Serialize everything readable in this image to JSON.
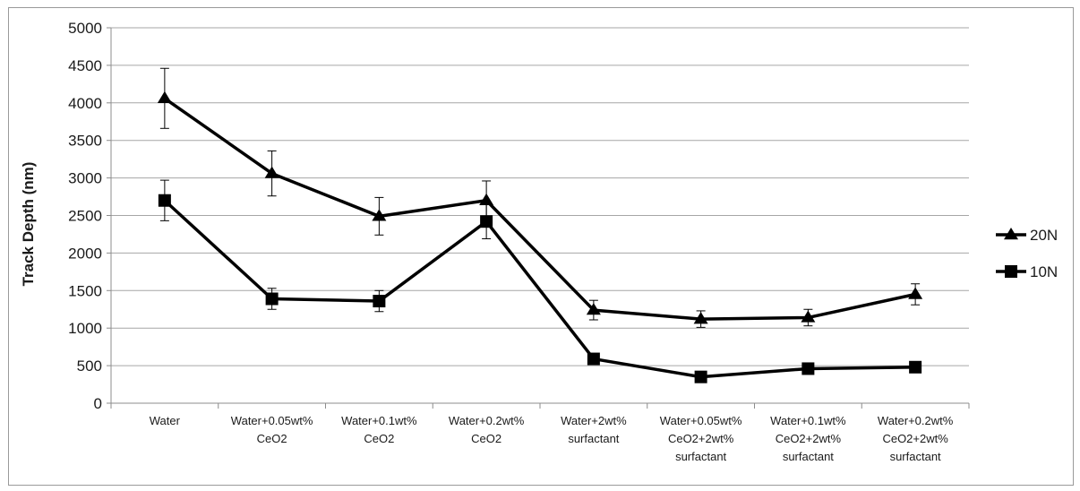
{
  "chart_data": {
    "type": "line",
    "title": "",
    "xlabel": "",
    "ylabel": "Track Depth (nm)",
    "ylim": [
      0,
      5000
    ],
    "ytick_step": 500,
    "yticks": [
      "0",
      "500",
      "1000",
      "1500",
      "2000",
      "2500",
      "3000",
      "3500",
      "4000",
      "4500",
      "5000"
    ],
    "grid": true,
    "legend_position": "right",
    "categories": [
      [
        "Water"
      ],
      [
        "Water+0.05wt%",
        "CeO2"
      ],
      [
        "Water+0.1wt%",
        "CeO2"
      ],
      [
        "Water+0.2wt%",
        "CeO2"
      ],
      [
        "Water+2wt%",
        "surfactant"
      ],
      [
        "Water+0.05wt%",
        "CeO2+2wt%",
        "surfactant"
      ],
      [
        "Water+0.1wt%",
        "CeO2+2wt%",
        "surfactant"
      ],
      [
        "Water+0.2wt%",
        "CeO2+2wt%",
        "surfactant"
      ]
    ],
    "series": [
      {
        "name": "20N",
        "marker": "triangle",
        "color": "#000000",
        "values": [
          4060,
          3060,
          2490,
          2700,
          1240,
          1120,
          1140,
          1450
        ],
        "error": [
          400,
          300,
          250,
          260,
          130,
          110,
          110,
          140
        ]
      },
      {
        "name": "10N",
        "marker": "square",
        "color": "#000000",
        "values": [
          2700,
          1390,
          1360,
          2420,
          590,
          350,
          460,
          480
        ],
        "error": [
          270,
          140,
          140,
          230,
          0,
          0,
          0,
          0
        ]
      }
    ]
  }
}
